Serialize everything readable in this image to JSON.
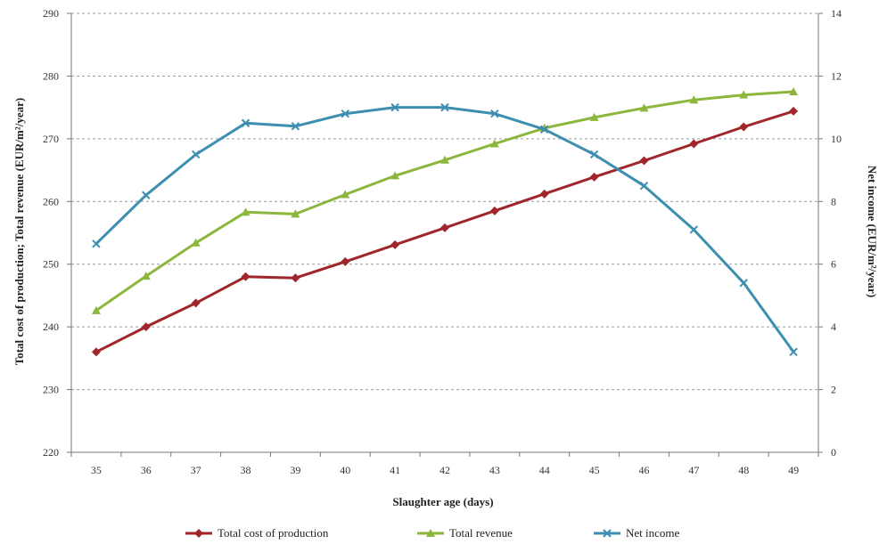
{
  "chart_data": {
    "type": "line",
    "xlabel": "Slaughter age (days)",
    "ylabel": "Total cost of production; Total revenue (EUR/m²/year)",
    "y2label": "Net income (EUR/m²/year)",
    "categories": [
      "35",
      "36",
      "37",
      "38",
      "39",
      "40",
      "41",
      "42",
      "43",
      "44",
      "45",
      "46",
      "47",
      "48",
      "49"
    ],
    "ylim": [
      220,
      290
    ],
    "y2lim": [
      0,
      14
    ],
    "yticks": [
      "220",
      "230",
      "240",
      "250",
      "260",
      "270",
      "280",
      "290"
    ],
    "y2ticks": [
      "0",
      "2",
      "4",
      "6",
      "8",
      "10",
      "12",
      "14"
    ],
    "grid": "horizontal dashed",
    "legend_position": "bottom",
    "series": [
      {
        "name": "Total cost of production",
        "axis": "left",
        "marker": "diamond",
        "color": "#a0262b",
        "values": [
          236.0,
          240.0,
          243.8,
          248.0,
          247.8,
          250.4,
          253.1,
          255.8,
          258.5,
          261.2,
          263.9,
          266.5,
          269.2,
          271.9,
          274.4
        ]
      },
      {
        "name": "Total revenue",
        "axis": "left",
        "marker": "triangle",
        "color": "#8db63c",
        "values": [
          242.6,
          248.1,
          253.4,
          258.3,
          258.0,
          261.1,
          264.1,
          266.6,
          269.2,
          271.7,
          273.4,
          274.9,
          276.2,
          277.0,
          277.5
        ]
      },
      {
        "name": "Net income",
        "axis": "right",
        "marker": "x",
        "color": "#3d8fb0",
        "values": [
          6.65,
          8.2,
          9.5,
          10.5,
          10.4,
          10.8,
          11.0,
          11.0,
          10.8,
          10.3,
          9.5,
          8.5,
          7.1,
          5.4,
          3.2
        ]
      }
    ]
  }
}
